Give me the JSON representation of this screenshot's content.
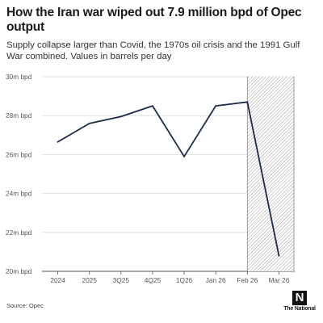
{
  "chart_data": {
    "type": "line",
    "title": "How the Iran war wiped out 7.9 million bpd of Opec output",
    "subtitle": "Supply collapse larger than Covid, the 1970s oil crisis and the 1991 Gulf War combined. Values in barrels per day",
    "categories": [
      "2024",
      "2025",
      "3Q25",
      "4Q25",
      "1Q26",
      "Jan 26",
      "Feb 26",
      "Mar 26"
    ],
    "series": [
      {
        "values": [
          26.65,
          27.6,
          27.95,
          28.5,
          25.9,
          28.5,
          28.7,
          20.8
        ]
      }
    ],
    "ylim": [
      20,
      30
    ],
    "yticks": [
      20,
      22,
      24,
      26,
      28,
      30
    ],
    "ytick_labels": [
      "20m bpd",
      "22m bpd",
      "24m bpd",
      "26m bpd",
      "28m bpd",
      "30m bpd"
    ],
    "shaded_region": {
      "from": "Feb 26",
      "to": "Mar 26"
    },
    "grid": true,
    "line_color": "#1c2b4a",
    "source": "Source: Opec"
  },
  "brand": {
    "logo_glyph": "N",
    "logo_name": "The National"
  }
}
